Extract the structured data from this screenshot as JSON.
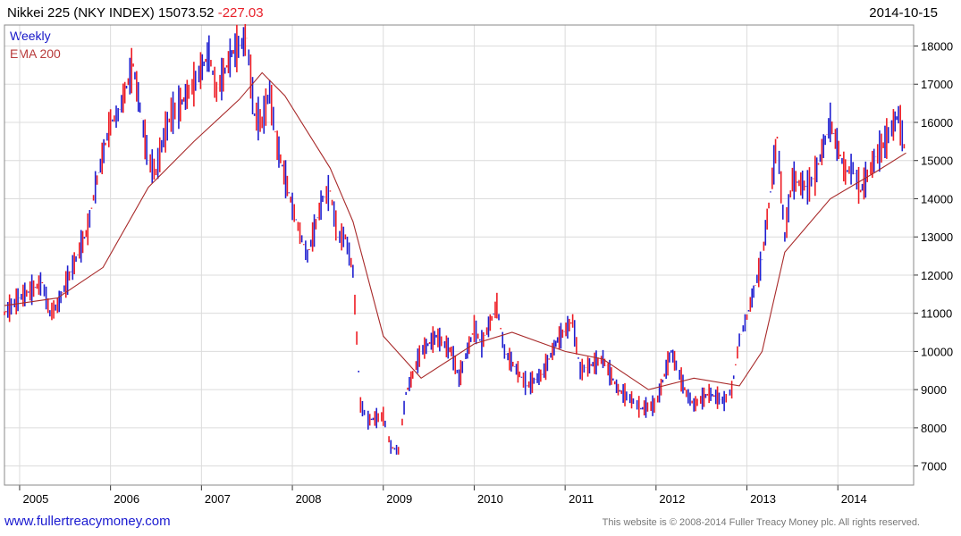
{
  "header": {
    "title": "Nikkei 225 (NKY INDEX)",
    "last": "15073.52",
    "change": "-227.03",
    "date": "2014-10-15"
  },
  "legend": {
    "weekly": "Weekly",
    "ema": "EMA 200"
  },
  "footer": {
    "website": "www.fullertreacymoney.com",
    "copyright": "This website is © 2008-2014 Fuller Treacy Money plc. All rights reserved."
  },
  "chart_data": {
    "type": "ohlc",
    "x_ticks": [
      "2005",
      "2006",
      "2007",
      "2008",
      "2009",
      "2010",
      "2011",
      "2012",
      "2013",
      "2014"
    ],
    "y_ticks": [
      7000,
      8000,
      9000,
      10000,
      11000,
      12000,
      13000,
      14000,
      15000,
      16000,
      17000,
      18000
    ],
    "xlim": [
      "2004-11",
      "2014-11"
    ],
    "ylim": [
      6500,
      18550
    ],
    "grid": true,
    "colors": {
      "up": "#1f1fd0",
      "down": "#ee1c24",
      "ema": "#a82a2a",
      "grid": "#dcdcdc"
    },
    "series": [
      {
        "name": "Weekly",
        "x": [
          "2004-11",
          "2005-01",
          "2005-04",
          "2005-05",
          "2005-06",
          "2005-08",
          "2005-10",
          "2005-11",
          "2006-01",
          "2006-02",
          "2006-04",
          "2006-06",
          "2006-07",
          "2006-08",
          "2006-09",
          "2006-10",
          "2006-12",
          "2007-02",
          "2007-03",
          "2007-05",
          "2007-07",
          "2007-08",
          "2007-09",
          "2007-10",
          "2007-11",
          "2008-01",
          "2008-02",
          "2008-03",
          "2008-05",
          "2008-06",
          "2008-07",
          "2008-08",
          "2008-09",
          "2008-10",
          "2008-11",
          "2009-01",
          "2009-02",
          "2009-03",
          "2009-04",
          "2009-06",
          "2009-08",
          "2009-10",
          "2009-11",
          "2010-01",
          "2010-02",
          "2010-04",
          "2010-05",
          "2010-07",
          "2010-08",
          "2010-10",
          "2010-12",
          "2011-02",
          "2011-03",
          "2011-04",
          "2011-06",
          "2011-08",
          "2011-10",
          "2011-11",
          "2012-01",
          "2012-03",
          "2012-05",
          "2012-06",
          "2012-08",
          "2012-10",
          "2012-11",
          "2012-12",
          "2013-01",
          "2013-03",
          "2013-05",
          "2013-06",
          "2013-07",
          "2013-09",
          "2013-10",
          "2013-12",
          "2014-02",
          "2014-03",
          "2014-04",
          "2014-06",
          "2014-07",
          "2014-09",
          "2014-10"
        ],
        "values": [
          11000,
          11400,
          11800,
          11000,
          11200,
          12200,
          13200,
          14300,
          16000,
          16200,
          17500,
          15000,
          14700,
          15600,
          16200,
          16400,
          17000,
          17800,
          16800,
          17800,
          18200,
          16200,
          16000,
          16800,
          15400,
          13800,
          13100,
          12500,
          14000,
          14200,
          13000,
          13000,
          12100,
          8600,
          8200,
          8300,
          7500,
          7400,
          8900,
          10000,
          10400,
          10000,
          9300,
          10600,
          10200,
          11200,
          10000,
          9400,
          9100,
          9400,
          10300,
          10800,
          9500,
          9600,
          9800,
          9000,
          8700,
          8500,
          8600,
          10000,
          8900,
          8600,
          8900,
          8700,
          9000,
          10300,
          10900,
          12400,
          15600,
          13000,
          14500,
          14300,
          14600,
          16000,
          14700,
          14800,
          14200,
          15100,
          15400,
          16200,
          15100
        ]
      },
      {
        "name": "EMA 200",
        "x": [
          "2004-11",
          "2005-06",
          "2005-12",
          "2006-06",
          "2006-12",
          "2007-06",
          "2007-09",
          "2007-12",
          "2008-06",
          "2008-09",
          "2009-01",
          "2009-06",
          "2010-01",
          "2010-06",
          "2011-01",
          "2011-06",
          "2011-12",
          "2012-06",
          "2012-12",
          "2013-03",
          "2013-06",
          "2013-12",
          "2014-06",
          "2014-10"
        ],
        "values": [
          11200,
          11400,
          12200,
          14300,
          15500,
          16600,
          17300,
          16700,
          14800,
          13400,
          10400,
          9300,
          10200,
          10500,
          10000,
          9800,
          9000,
          9300,
          9100,
          10000,
          12600,
          14000,
          14700,
          15200
        ]
      }
    ]
  }
}
